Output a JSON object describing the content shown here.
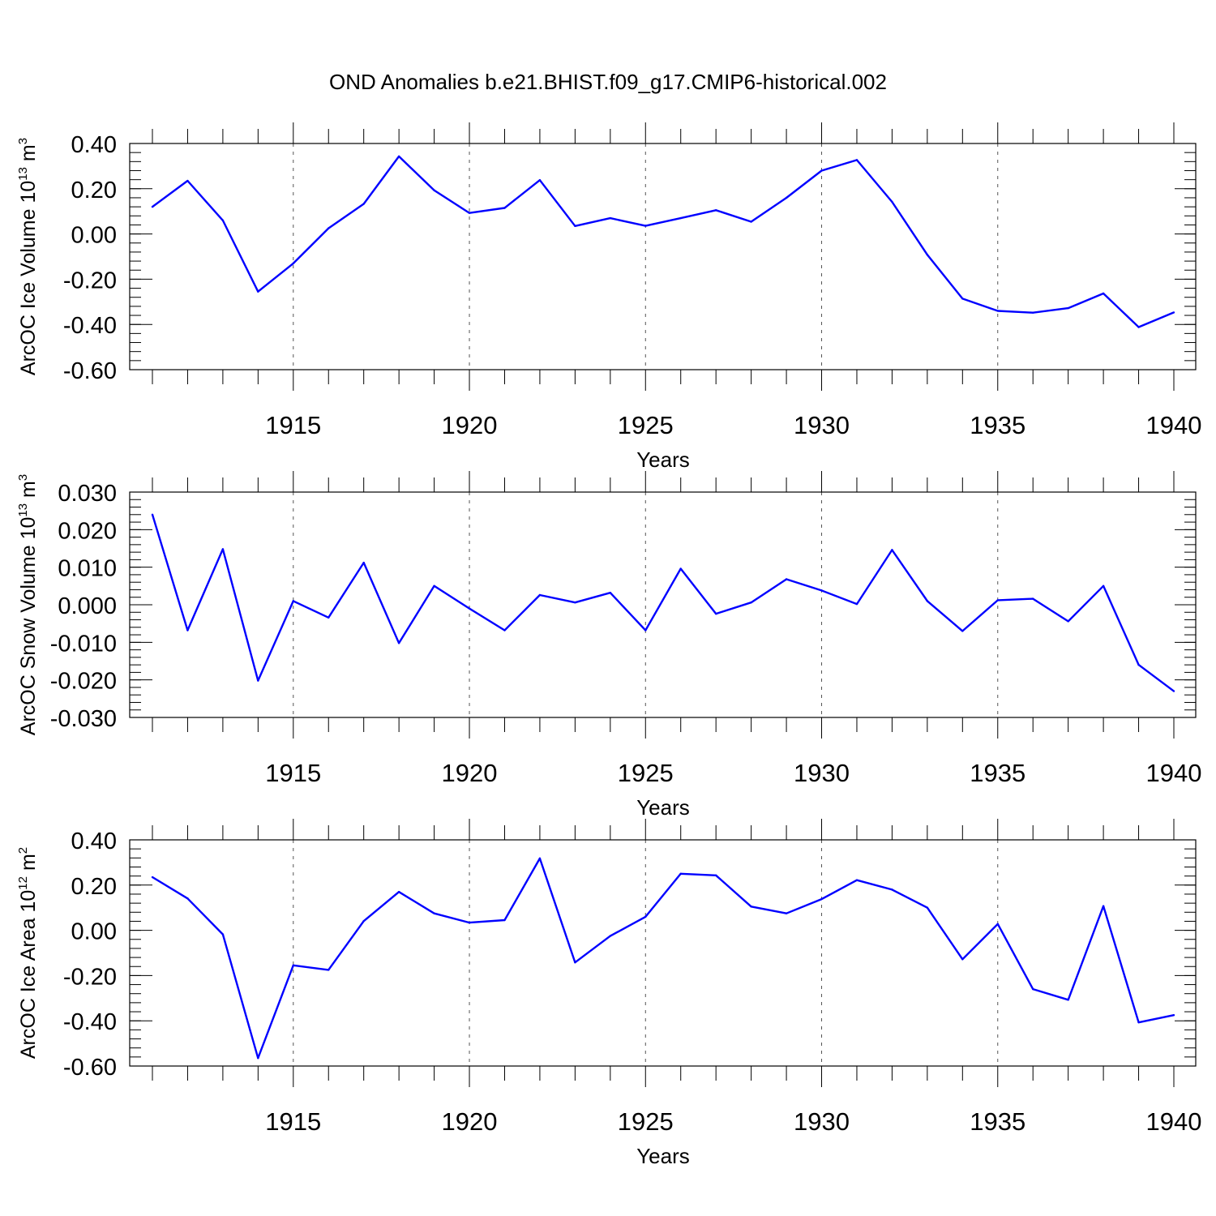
{
  "figure": {
    "title": "OND Anomalies b.e21.BHIST.f09_g17.CMIP6-historical.002",
    "line_color": "#0000ff"
  },
  "chart_data": [
    {
      "type": "line",
      "title": "",
      "xlabel": "Years",
      "ylabel": {
        "prefix": "ArcOC Ice Volume 10",
        "exp": "13",
        "unit": " m",
        "unit_exp": "3"
      },
      "xlim": [
        1911,
        1940
      ],
      "ylim": [
        -0.6,
        0.4
      ],
      "x_ticks": [
        1915,
        1920,
        1925,
        1930,
        1935,
        1940
      ],
      "y_ticks": [
        "0.40",
        "0.20",
        "0.00",
        "-0.20",
        "-0.40",
        "-0.60"
      ],
      "y_tick_values": [
        0.4,
        0.2,
        0.0,
        -0.2,
        -0.4,
        -0.6
      ],
      "minor_y_step": 0.04,
      "grid": "dashed vertical at major x ticks",
      "x": [
        1911,
        1912,
        1913,
        1914,
        1915,
        1916,
        1917,
        1918,
        1919,
        1920,
        1921,
        1922,
        1923,
        1924,
        1925,
        1926,
        1927,
        1928,
        1929,
        1930,
        1931,
        1932,
        1933,
        1934,
        1935,
        1936,
        1937,
        1938,
        1939,
        1940
      ],
      "series": [
        {
          "values": [
            0.12,
            0.235,
            0.06,
            -0.255,
            -0.13,
            0.025,
            0.133,
            0.343,
            0.193,
            0.093,
            0.115,
            0.238,
            0.035,
            0.07,
            0.036,
            0.07,
            0.105,
            0.054,
            0.16,
            0.28,
            0.327,
            0.142,
            -0.092,
            -0.286,
            -0.34,
            -0.348,
            -0.328,
            -0.263,
            -0.412,
            -0.347
          ]
        }
      ]
    },
    {
      "type": "line",
      "title": "",
      "xlabel": "Years",
      "ylabel": {
        "prefix": "ArcOC Snow Volume 10",
        "exp": "13",
        "unit": " m",
        "unit_exp": "3"
      },
      "xlim": [
        1911,
        1940
      ],
      "ylim": [
        -0.03,
        0.03
      ],
      "x_ticks": [
        1915,
        1920,
        1925,
        1930,
        1935,
        1940
      ],
      "y_ticks": [
        "0.030",
        "0.020",
        "0.010",
        "0.000",
        "-0.010",
        "-0.020",
        "-0.030"
      ],
      "y_tick_values": [
        0.03,
        0.02,
        0.01,
        0.0,
        -0.01,
        -0.02,
        -0.03
      ],
      "minor_y_step": 0.002,
      "grid": "dashed vertical at major x ticks",
      "x": [
        1911,
        1912,
        1913,
        1914,
        1915,
        1916,
        1917,
        1918,
        1919,
        1920,
        1921,
        1922,
        1923,
        1924,
        1925,
        1926,
        1927,
        1928,
        1929,
        1930,
        1931,
        1932,
        1933,
        1934,
        1935,
        1936,
        1937,
        1938,
        1939,
        1940
      ],
      "series": [
        {
          "values": [
            0.024,
            -0.0068,
            0.0148,
            -0.0202,
            0.001,
            -0.0034,
            0.0112,
            -0.0102,
            0.005,
            -0.001,
            -0.0068,
            0.0026,
            0.0006,
            0.0032,
            -0.0068,
            0.0096,
            -0.0024,
            0.0006,
            0.0068,
            0.0038,
            0.0002,
            0.0146,
            0.001,
            -0.007,
            0.0012,
            0.0016,
            -0.0044,
            0.005,
            -0.016,
            -0.023
          ]
        }
      ]
    },
    {
      "type": "line",
      "title": "",
      "xlabel": "Years",
      "ylabel": {
        "prefix": "ArcOC Ice Area 10",
        "exp": "12",
        "unit": " m",
        "unit_exp": "2"
      },
      "xlim": [
        1911,
        1940
      ],
      "ylim": [
        -0.6,
        0.4
      ],
      "x_ticks": [
        1915,
        1920,
        1925,
        1930,
        1935,
        1940
      ],
      "y_ticks": [
        "0.40",
        "0.20",
        "0.00",
        "-0.20",
        "-0.40",
        "-0.60"
      ],
      "y_tick_values": [
        0.4,
        0.2,
        0.0,
        -0.2,
        -0.4,
        -0.6
      ],
      "minor_y_step": 0.04,
      "grid": "dashed vertical at major x ticks",
      "x": [
        1911,
        1912,
        1913,
        1914,
        1915,
        1916,
        1917,
        1918,
        1919,
        1920,
        1921,
        1922,
        1923,
        1924,
        1925,
        1926,
        1927,
        1928,
        1929,
        1930,
        1931,
        1932,
        1933,
        1934,
        1935,
        1936,
        1937,
        1938,
        1939,
        1940
      ],
      "series": [
        {
          "values": [
            0.235,
            0.141,
            -0.018,
            -0.565,
            -0.155,
            -0.175,
            0.041,
            0.17,
            0.075,
            0.034,
            0.045,
            0.318,
            -0.142,
            -0.025,
            0.06,
            0.25,
            0.243,
            0.105,
            0.075,
            0.138,
            0.222,
            0.18,
            0.1,
            -0.128,
            0.028,
            -0.26,
            -0.307,
            0.107,
            -0.407,
            -0.375
          ]
        }
      ]
    }
  ]
}
